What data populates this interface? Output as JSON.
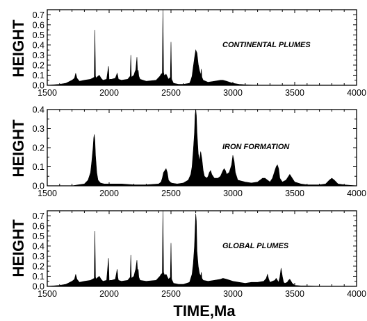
{
  "chart_data": [
    {
      "type": "area",
      "title": "CONTINENTAL PLUMES",
      "ylabel": "HEIGHT",
      "xlabel": "",
      "xlim": [
        1500,
        4000
      ],
      "ylim": [
        0,
        0.75
      ],
      "yticks": [
        "0.0",
        "0.1",
        "0.2",
        "0.3",
        "0.4",
        "0.5",
        "0.6",
        "0.7"
      ],
      "xticks": [
        "1500",
        "2000",
        "2500",
        "3000",
        "3500",
        "4000"
      ],
      "grid": false,
      "x": [
        1500,
        1600,
        1650,
        1700,
        1720,
        1730,
        1740,
        1760,
        1800,
        1850,
        1880,
        1885,
        1890,
        1895,
        1900,
        1920,
        1935,
        1950,
        1980,
        1995,
        2000,
        2005,
        2020,
        2050,
        2065,
        2070,
        2075,
        2100,
        2150,
        2170,
        2175,
        2180,
        2200,
        2210,
        2215,
        2225,
        2230,
        2235,
        2240,
        2250,
        2300,
        2380,
        2410,
        2420,
        2430,
        2435,
        2440,
        2445,
        2450,
        2460,
        2480,
        2495,
        2500,
        2505,
        2520,
        2560,
        2600,
        2650,
        2660,
        2670,
        2680,
        2690,
        2700,
        2710,
        2720,
        2730,
        2740,
        2745,
        2750,
        2760,
        2800,
        2850,
        2900,
        2920,
        2950,
        3000,
        3050,
        3100,
        3200,
        3500,
        4000
      ],
      "y": [
        0,
        0.01,
        0.02,
        0.05,
        0.07,
        0.12,
        0.07,
        0.04,
        0.05,
        0.06,
        0.08,
        0.55,
        0.09,
        0.07,
        0.08,
        0.1,
        0.07,
        0.05,
        0.06,
        0.19,
        0.05,
        0.06,
        0.06,
        0.07,
        0.12,
        0.09,
        0.06,
        0.05,
        0.06,
        0.09,
        0.3,
        0.08,
        0.1,
        0.14,
        0.15,
        0.28,
        0.13,
        0.15,
        0.09,
        0.06,
        0.04,
        0.05,
        0.09,
        0.11,
        0.12,
        0.75,
        0.13,
        0.1,
        0.1,
        0.11,
        0.06,
        0.08,
        0.43,
        0.06,
        0.02,
        0.01,
        0.01,
        0.02,
        0.05,
        0.09,
        0.18,
        0.27,
        0.35,
        0.32,
        0.21,
        0.15,
        0.1,
        0.16,
        0.08,
        0.05,
        0.03,
        0.04,
        0.05,
        0.05,
        0.04,
        0.02,
        0.01,
        0.005,
        0,
        0,
        0
      ]
    },
    {
      "type": "area",
      "title": "IRON FORMATION",
      "ylabel": "HEIGHT",
      "xlabel": "",
      "xlim": [
        1500,
        4000
      ],
      "ylim": [
        0,
        0.4
      ],
      "yticks": [
        "0.0",
        "0.1",
        "0.2",
        "0.3",
        "0.4"
      ],
      "xticks": [
        "1500",
        "2000",
        "2500",
        "3000",
        "3500",
        "4000"
      ],
      "grid": false,
      "x": [
        1500,
        1700,
        1750,
        1800,
        1830,
        1850,
        1860,
        1870,
        1875,
        1880,
        1885,
        1890,
        1900,
        1910,
        1930,
        1960,
        2000,
        2050,
        2100,
        2200,
        2300,
        2400,
        2420,
        2430,
        2440,
        2450,
        2460,
        2470,
        2480,
        2500,
        2550,
        2600,
        2640,
        2660,
        2670,
        2680,
        2690,
        2695,
        2700,
        2705,
        2710,
        2720,
        2730,
        2740,
        2750,
        2760,
        2770,
        2790,
        2800,
        2810,
        2820,
        2830,
        2850,
        2880,
        2900,
        2920,
        2930,
        2940,
        2950,
        2970,
        2990,
        3000,
        3010,
        3020,
        3040,
        3100,
        3150,
        3200,
        3220,
        3240,
        3260,
        3280,
        3300,
        3320,
        3340,
        3350,
        3360,
        3370,
        3380,
        3400,
        3430,
        3450,
        3460,
        3480,
        3500,
        3550,
        3600,
        3650,
        3700,
        3750,
        3780,
        3800,
        3820,
        3850,
        3900,
        4000
      ],
      "y": [
        0,
        0,
        0.005,
        0.01,
        0.03,
        0.07,
        0.13,
        0.2,
        0.25,
        0.27,
        0.24,
        0.16,
        0.07,
        0.03,
        0.015,
        0.01,
        0.01,
        0.01,
        0.01,
        0.005,
        0.005,
        0.01,
        0.02,
        0.04,
        0.07,
        0.08,
        0.09,
        0.07,
        0.03,
        0.015,
        0.01,
        0.015,
        0.03,
        0.06,
        0.1,
        0.18,
        0.28,
        0.37,
        0.4,
        0.37,
        0.28,
        0.17,
        0.13,
        0.18,
        0.14,
        0.08,
        0.05,
        0.04,
        0.05,
        0.07,
        0.08,
        0.06,
        0.04,
        0.04,
        0.05,
        0.08,
        0.09,
        0.08,
        0.06,
        0.07,
        0.11,
        0.16,
        0.13,
        0.07,
        0.03,
        0.02,
        0.015,
        0.02,
        0.03,
        0.04,
        0.04,
        0.03,
        0.02,
        0.04,
        0.08,
        0.1,
        0.11,
        0.09,
        0.04,
        0.02,
        0.03,
        0.05,
        0.06,
        0.04,
        0.02,
        0.01,
        0.005,
        0.005,
        0.005,
        0.01,
        0.03,
        0.04,
        0.03,
        0.01,
        0.005,
        0
      ]
    },
    {
      "type": "area",
      "title": "GLOBAL PLUMES",
      "ylabel": "HEIGHT",
      "xlabel": "TIME,Ma",
      "xlim": [
        1500,
        4000
      ],
      "ylim": [
        0,
        0.75
      ],
      "yticks": [
        "0.0",
        "0.1",
        "0.2",
        "0.3",
        "0.4",
        "0.5",
        "0.6",
        "0.7"
      ],
      "xticks": [
        "1500",
        "2000",
        "2500",
        "3000",
        "3500",
        "4000"
      ],
      "grid": false,
      "x": [
        1500,
        1600,
        1650,
        1700,
        1720,
        1730,
        1740,
        1760,
        1800,
        1850,
        1880,
        1885,
        1890,
        1895,
        1900,
        1920,
        1935,
        1950,
        1980,
        1995,
        2000,
        2005,
        2020,
        2050,
        2065,
        2070,
        2075,
        2100,
        2150,
        2170,
        2175,
        2180,
        2200,
        2210,
        2215,
        2225,
        2230,
        2235,
        2240,
        2250,
        2300,
        2380,
        2410,
        2420,
        2430,
        2435,
        2440,
        2445,
        2450,
        2460,
        2480,
        2495,
        2500,
        2505,
        2520,
        2560,
        2600,
        2650,
        2660,
        2670,
        2680,
        2690,
        2700,
        2705,
        2710,
        2720,
        2730,
        2740,
        2745,
        2750,
        2760,
        2800,
        2850,
        2900,
        2920,
        2950,
        3000,
        3050,
        3100,
        3150,
        3200,
        3250,
        3270,
        3280,
        3290,
        3300,
        3320,
        3340,
        3350,
        3360,
        3370,
        3380,
        3390,
        3400,
        3410,
        3420,
        3440,
        3450,
        3460,
        3470,
        3480,
        3500,
        3550,
        3600,
        3700,
        4000
      ],
      "y": [
        0,
        0.01,
        0.02,
        0.05,
        0.07,
        0.12,
        0.07,
        0.04,
        0.05,
        0.06,
        0.08,
        0.55,
        0.09,
        0.07,
        0.08,
        0.1,
        0.07,
        0.05,
        0.06,
        0.28,
        0.05,
        0.06,
        0.06,
        0.07,
        0.17,
        0.09,
        0.06,
        0.05,
        0.06,
        0.09,
        0.31,
        0.08,
        0.1,
        0.15,
        0.17,
        0.26,
        0.15,
        0.17,
        0.09,
        0.06,
        0.05,
        0.06,
        0.1,
        0.12,
        0.13,
        0.75,
        0.14,
        0.12,
        0.11,
        0.12,
        0.07,
        0.09,
        0.43,
        0.07,
        0.03,
        0.02,
        0.02,
        0.04,
        0.08,
        0.12,
        0.22,
        0.4,
        0.72,
        0.65,
        0.35,
        0.2,
        0.13,
        0.1,
        0.14,
        0.08,
        0.06,
        0.05,
        0.06,
        0.07,
        0.08,
        0.07,
        0.05,
        0.04,
        0.03,
        0.04,
        0.04,
        0.05,
        0.08,
        0.12,
        0.07,
        0.04,
        0.05,
        0.06,
        0.08,
        0.06,
        0.04,
        0.09,
        0.18,
        0.1,
        0.04,
        0.03,
        0.04,
        0.06,
        0.07,
        0.05,
        0.03,
        0.01,
        0.005,
        0.005,
        0,
        0
      ]
    }
  ]
}
